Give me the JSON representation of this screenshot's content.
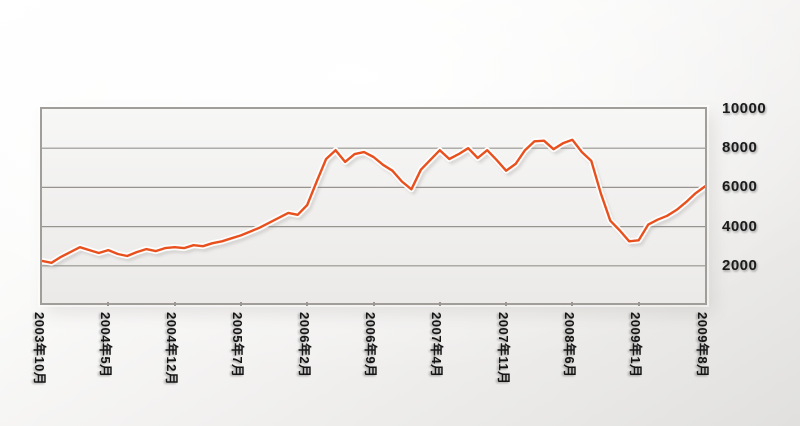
{
  "chart_data": {
    "type": "line",
    "title": "",
    "legend": "none",
    "grid": "horizontal",
    "y_axis": {
      "side": "right",
      "ticks": [
        10000,
        8000,
        6000,
        4000,
        2000
      ],
      "range_min": 100,
      "range_max": 10000
    },
    "x_axis": {
      "labels": [
        "2003年10月",
        "2004年5月",
        "2004年12月",
        "2005年7月",
        "2006年2月",
        "2006年9月",
        "2007年4月",
        "2007年11月",
        "2008年6月",
        "2009年1月",
        "2009年8月"
      ],
      "label_every_n_points": 7,
      "label_rotation_deg": 90
    },
    "series": [
      {
        "values": [
          2250,
          2150,
          2450,
          2700,
          2950,
          2800,
          2650,
          2800,
          2600,
          2500,
          2700,
          2850,
          2750,
          2900,
          2950,
          2900,
          3050,
          3000,
          3150,
          3250,
          3400,
          3550,
          3750,
          3950,
          4200,
          4450,
          4700,
          4600,
          5100,
          6300,
          7450,
          7900,
          7300,
          7700,
          7800,
          7550,
          7150,
          6850,
          6300,
          5900,
          6900,
          7400,
          7900,
          7450,
          7700,
          8000,
          7500,
          7900,
          7400,
          6850,
          7200,
          7900,
          8350,
          8380,
          7950,
          8250,
          8430,
          7800,
          7350,
          5700,
          4300,
          3800,
          3250,
          3300,
          4100,
          4350,
          4550,
          4850,
          5250,
          5700,
          6050
        ]
      }
    ]
  },
  "colors": {
    "line": "#e8501e",
    "grid": "#97948f",
    "plot_border": "#a19d98",
    "label_text": "#1b1b1b"
  }
}
